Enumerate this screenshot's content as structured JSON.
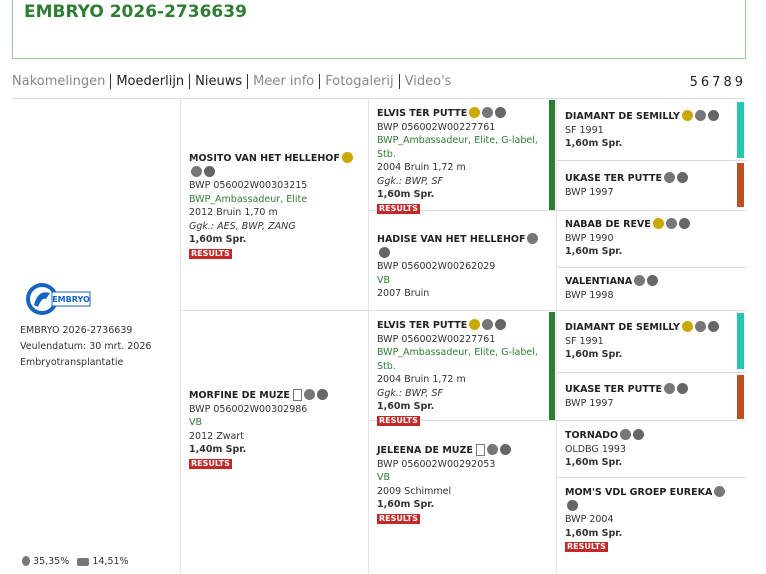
{
  "header": {
    "title": "EMBRYO 2026-2736639"
  },
  "tabs": [
    "Nakomelingen",
    "Moederlijn",
    "Nieuws",
    "Meer info",
    "Fotogalerij",
    "Video's"
  ],
  "pages": [
    "5",
    "6",
    "7",
    "8",
    "9"
  ],
  "subject": {
    "logo": "EMBRYO",
    "name": "EMBRYO 2026-2736639",
    "birth": "Veulendatum: 30 mrt. 2026",
    "method": "Embryotransplantatie",
    "stats": [
      "35,35%",
      "14,51%"
    ]
  },
  "pedigree": {
    "sire": {
      "name": "MOSITO VAN HET HELLEHOF",
      "reg": "BWP 056002W00303215",
      "studbook": "BWP_Ambassadeur, Elite",
      "birth": "2012 Bruin 1,70 m",
      "ggk": "Ggk.: AES, BWP, ZANG",
      "spr": "1,60m Spr.",
      "results": "RESULTS"
    },
    "sire_sire": {
      "name": "ELVIS TER PUTTE",
      "reg": "BWP 056002W00227761",
      "studbook": "BWP_Ambassadeur, Elite, G-label, Stb.",
      "birth": "2004 Bruin 1,72 m",
      "ggk": "Ggk.: BWP, SF",
      "spr": "1,60m Spr.",
      "results": "RESULTS"
    },
    "sire_sire_sire": {
      "name": "DIAMANT DE SEMILLY",
      "reg": "SF 1991",
      "spr": "1,60m Spr."
    },
    "sire_sire_dam": {
      "name": "UKASE TER PUTTE",
      "reg": "BWP 1997"
    },
    "sire_dam": {
      "name": "HADISE VAN HET HELLEHOF",
      "reg": "BWP 056002W00262029",
      "status": "VB",
      "birth": "2007 Bruin"
    },
    "sire_dam_sire": {
      "name": "NABAB DE REVE",
      "reg": "BWP 1990",
      "spr": "1,60m Spr."
    },
    "sire_dam_dam": {
      "name": "VALENTIANA",
      "reg": "BWP 1998"
    },
    "dam": {
      "name": "MORFINE DE MUZE",
      "reg": "BWP 056002W00302986",
      "status": "VB",
      "birth": "2012 Zwart",
      "spr": "1,40m Spr.",
      "results": "RESULTS"
    },
    "dam_sire": {
      "name": "ELVIS TER PUTTE",
      "reg": "BWP 056002W00227761",
      "studbook": "BWP_Ambassadeur, Elite, G-label, Stb.",
      "birth": "2004 Bruin 1,72 m",
      "ggk": "Ggk.: BWP, SF",
      "spr": "1,60m Spr.",
      "results": "RESULTS"
    },
    "dam_sire_sire": {
      "name": "DIAMANT DE SEMILLY",
      "reg": "SF 1991",
      "spr": "1,60m Spr."
    },
    "dam_sire_dam": {
      "name": "UKASE TER PUTTE",
      "reg": "BWP 1997"
    },
    "dam_dam": {
      "name": "JELEENA DE MUZE",
      "reg": "BWP 056002W00292053",
      "status": "VB",
      "birth": "2009 Schimmel",
      "spr": "1,60m Spr.",
      "results": "RESULTS"
    },
    "dam_dam_sire": {
      "name": "TORNADO",
      "reg": "OLDBG 1993",
      "spr": "1,60m Spr."
    },
    "dam_dam_dam": {
      "name": "MOM'S VDL GROEP EUREKA",
      "reg": "BWP 2004",
      "spr": "1,60m Spr.",
      "results": "RESULTS"
    }
  }
}
